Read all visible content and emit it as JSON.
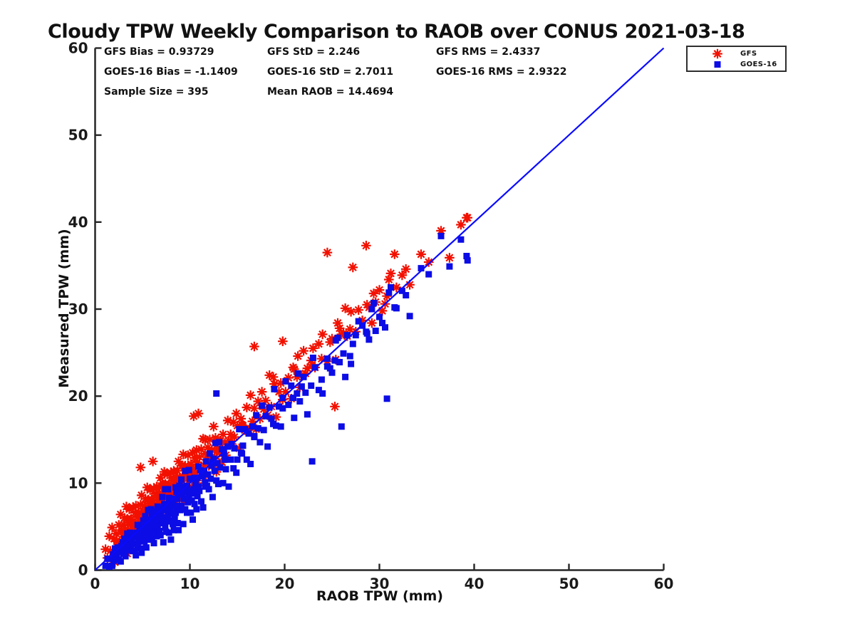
{
  "title": "Cloudy TPW Weekly Comparison to RAOB over CONUS 2021-03-18",
  "stats": [
    [
      "GFS Bias = 0.93729",
      "GFS StD = 2.246",
      "GFS RMS = 2.4337"
    ],
    [
      "GOES-16 Bias = -1.1409",
      "GOES-16 StD = 2.7011",
      "GOES-16 RMS = 2.9322"
    ],
    [
      "Sample Size = 395",
      "Mean RAOB = 14.4694"
    ]
  ],
  "axes": {
    "x_label": "RAOB TPW (mm)",
    "y_label": "Measured TPW (mm)",
    "axis_color": "#262626",
    "text_color": "#1a1a1a"
  },
  "chart_data": {
    "type": "scatter",
    "title": "Cloudy TPW Weekly Comparison to RAOB over CONUS 2021-03-18",
    "xlabel": "RAOB TPW (mm)",
    "ylabel": "Measured TPW (mm)",
    "xlim": [
      0,
      60
    ],
    "ylim": [
      0,
      60
    ],
    "x_ticks": [
      0,
      10,
      20,
      30,
      40,
      50,
      60
    ],
    "y_ticks": [
      0,
      10,
      20,
      30,
      40,
      50,
      60
    ],
    "grid": false,
    "legend_position": "top-right",
    "identity_line": {
      "from": [
        0,
        0
      ],
      "to": [
        60,
        60
      ],
      "color": "#0a0aff"
    },
    "stats": {
      "gfs_bias": 0.93729,
      "gfs_std": 2.246,
      "gfs_rms": 2.4337,
      "goes16_bias": -1.1409,
      "goes16_std": 2.7011,
      "goes16_rms": 2.9322,
      "sample_size": 395,
      "mean_raob": 14.4694
    },
    "x": [
      1.1,
      1.3,
      1.5,
      1.6,
      1.8,
      1.9,
      2.0,
      2.1,
      2.2,
      2.3,
      2.4,
      2.5,
      2.6,
      2.7,
      2.8,
      2.8,
      2.9,
      2.9,
      3.0,
      3.0,
      3.1,
      3.1,
      3.2,
      3.2,
      3.3,
      3.3,
      3.4,
      3.4,
      3.5,
      3.5,
      3.6,
      3.6,
      3.7,
      3.7,
      3.8,
      3.8,
      3.9,
      3.9,
      4.0,
      4.0,
      4.1,
      4.1,
      4.2,
      4.3,
      4.3,
      4.4,
      4.5,
      4.5,
      4.6,
      4.7,
      4.7,
      4.8,
      4.9,
      4.9,
      5.0,
      5.0,
      5.1,
      5.1,
      5.2,
      5.2,
      5.3,
      5.3,
      5.4,
      5.4,
      5.5,
      5.5,
      5.6,
      5.6,
      5.7,
      5.7,
      5.8,
      5.8,
      5.9,
      5.9,
      6.0,
      6.0,
      6.1,
      6.1,
      6.2,
      6.2,
      6.3,
      6.3,
      6.4,
      6.4,
      6.5,
      6.5,
      6.6,
      6.6,
      6.7,
      6.7,
      6.8,
      6.8,
      6.9,
      6.9,
      7.0,
      7.0,
      6.2,
      5.8,
      6.4,
      6.1,
      7.1,
      7.1,
      7.2,
      7.2,
      7.3,
      7.3,
      7.4,
      7.4,
      7.5,
      7.5,
      7.6,
      7.6,
      7.7,
      7.7,
      7.8,
      7.8,
      7.9,
      7.9,
      8.0,
      8.0,
      8.1,
      8.1,
      8.2,
      8.2,
      8.3,
      8.4,
      8.4,
      8.5,
      8.5,
      8.6,
      8.6,
      8.7,
      8.7,
      8.8,
      8.8,
      8.9,
      8.9,
      9.0,
      8.3,
      8.2,
      9.1,
      9.1,
      9.2,
      9.3,
      9.3,
      9.4,
      9.5,
      9.5,
      9.6,
      9.7,
      9.7,
      9.8,
      9.9,
      9.9,
      10.0,
      10.1,
      10.1,
      10.2,
      10.3,
      10.3,
      10.4,
      10.5,
      10.5,
      10.6,
      10.7,
      10.8,
      10.8,
      10.9,
      11.0,
      10.2,
      11.1,
      11.2,
      11.3,
      11.4,
      11.5,
      11.6,
      11.7,
      11.8,
      11.9,
      12.0,
      12.1,
      12.2,
      12.3,
      12.4,
      12.5,
      12.6,
      12.7,
      12.8,
      12.9,
      13.0,
      12.4,
      11.6,
      13.1,
      13.2,
      13.4,
      13.5,
      13.7,
      13.8,
      14.0,
      14.1,
      14.3,
      14.4,
      14.6,
      14.7,
      14.9,
      13.6,
      15.0,
      15.2,
      15.4,
      15.6,
      15.8,
      16.0,
      16.2,
      16.4,
      16.6,
      16.8,
      17.0,
      15.5,
      17.2,
      17.4,
      17.6,
      17.8,
      18.0,
      18.2,
      18.4,
      18.6,
      18.9,
      19.1,
      19.4,
      19.6,
      19.8,
      18.8,
      20.1,
      20.4,
      20.7,
      21.0,
      21.3,
      21.6,
      22.0,
      22.4,
      22.8,
      23.2,
      23.6,
      21.8,
      24.0,
      24.5,
      25.0,
      25.4,
      25.8,
      26.2,
      26.6,
      27.0,
      27.5,
      26.4,
      28.2,
      28.7,
      29.2,
      29.6,
      30.0,
      30.6,
      31.2,
      31.8,
      32.4,
      33.2,
      34.4,
      35.2,
      36.5,
      37.4,
      38.6,
      39.2,
      24.5,
      27.2,
      28.6,
      31.6,
      25.3,
      10.9,
      10.4,
      16.8,
      19.8,
      4.8,
      6.1,
      12.8,
      30.8,
      26.0,
      22.9,
      39.3,
      20.9,
      21.4,
      22.2,
      23.0,
      23.9,
      24.8,
      25.6,
      26.9,
      27.8,
      28.9,
      29.4,
      30.3,
      31.0,
      32.8
    ],
    "series": [
      {
        "name": "GFS",
        "marker": "asterisk",
        "color": "#f21000",
        "y": [
          2.4,
          1.4,
          3.9,
          2.2,
          4.9,
          1.4,
          3.6,
          0.9,
          4.2,
          3.3,
          2.7,
          5.2,
          2.5,
          6.4,
          3.3,
          4.6,
          2.1,
          4.1,
          5.2,
          3.0,
          6.0,
          3.8,
          4.7,
          2.8,
          7.3,
          3.5,
          5.9,
          1.9,
          4.6,
          5.4,
          3.4,
          7.0,
          4.1,
          5.4,
          2.8,
          5.9,
          4.8,
          3.3,
          7.2,
          4.8,
          5.4,
          4.2,
          6.6,
          4.9,
          7.4,
          3.9,
          6.1,
          3.3,
          6.6,
          5.7,
          5.0,
          7.5,
          4.8,
          8.6,
          5.5,
          6.8,
          4.3,
          6.3,
          7.4,
          5.2,
          8.2,
          6.0,
          6.9,
          5.0,
          9.5,
          5.7,
          8.1,
          4.1,
          6.8,
          7.6,
          5.6,
          9.2,
          6.3,
          7.6,
          5.0,
          8.1,
          7.0,
          5.5,
          9.4,
          7.0,
          7.6,
          6.4,
          8.8,
          7.0,
          9.6,
          6.0,
          8.2,
          5.4,
          8.7,
          7.7,
          7.1,
          9.5,
          6.8,
          10.6,
          7.5,
          8.8,
          5.4,
          7.0,
          8.6,
          6.1,
          10.0,
          7.8,
          8.7,
          6.8,
          11.3,
          7.5,
          9.9,
          5.9,
          8.6,
          9.4,
          7.4,
          11.0,
          8.1,
          9.4,
          6.8,
          9.9,
          8.8,
          7.3,
          11.2,
          8.8,
          9.4,
          8.2,
          10.6,
          8.8,
          11.4,
          7.9,
          10.0,
          7.3,
          10.5,
          9.6,
          8.9,
          11.4,
          8.6,
          12.5,
          9.3,
          10.7,
          8.1,
          10.2,
          10.5,
          8.2,
          12.0,
          9.8,
          10.7,
          8.9,
          13.3,
          9.6,
          12.0,
          8.0,
          10.7,
          11.6,
          9.5,
          13.2,
          10.3,
          11.6,
          9.0,
          12.2,
          11.0,
          9.6,
          13.5,
          11.1,
          11.7,
          10.6,
          12.9,
          11.2,
          13.8,
          10.3,
          12.4,
          9.7,
          13.0,
          11.2,
          11.4,
          13.9,
          11.2,
          15.1,
          12.0,
          13.4,
          10.9,
          13.0,
          14.1,
          12.0,
          15.0,
          12.9,
          13.8,
          12.0,
          16.5,
          12.8,
          15.2,
          11.3,
          14.0,
          14.9,
          12.2,
          15.0,
          13.5,
          14.9,
          12.4,
          15.6,
          14.6,
          13.2,
          17.2,
          14.9,
          15.6,
          14.5,
          17.0,
          15.3,
          18.0,
          13.1,
          16.6,
          14.0,
          17.4,
          16.6,
          16.1,
          18.7,
          16.1,
          20.1,
          17.1,
          18.6,
          16.2,
          16.7,
          19.4,
          17.4,
          20.5,
          18.5,
          19.5,
          17.8,
          22.4,
          18.8,
          21.4,
          17.6,
          20.5,
          21.5,
          19.6,
          22.2,
          20.5,
          22.1,
          19.7,
          23.1,
          22.2,
          21.0,
          25.2,
          23.2,
          24.1,
          23.3,
          26.0,
          22.4,
          27.1,
          24.0,
          26.6,
          24.2,
          27.8,
          27.2,
          26.9,
          29.7,
          27.4,
          30.1,
          28.7,
          30.5,
          28.4,
          30.8,
          32.2,
          30.6,
          34.1,
          32.5,
          33.9,
          32.8,
          36.3,
          35.4,
          39.0,
          35.9,
          39.7,
          40.5,
          36.5,
          34.8,
          37.3,
          36.3,
          18.8,
          18.0,
          17.7,
          25.7,
          26.3,
          11.8,
          12.5,
          13.6,
          31.5,
          27.1,
          23.6,
          40.5,
          23.3,
          24.6,
          22.6,
          25.5,
          24.3,
          26.2,
          28.4,
          27.7,
          29.9,
          30.2,
          31.8,
          29.8,
          33.4,
          34.6
        ]
      },
      {
        "name": "GOES-16",
        "marker": "square",
        "color": "#0c0ce6",
        "y": [
          0.5,
          1.3,
          0.4,
          1.3,
          0.5,
          1.8,
          1.1,
          2.5,
          1.4,
          1.8,
          2.6,
          1.2,
          2.4,
          1.0,
          2.8,
          2.2,
          3.2,
          2.1,
          2.6,
          1.9,
          3.6,
          2.4,
          3.1,
          1.6,
          3.4,
          2.8,
          4.2,
          2.4,
          3.3,
          2.3,
          3.6,
          2.8,
          4.3,
          3.1,
          4.0,
          2.4,
          3.5,
          3.0,
          4.1,
          2.2,
          3.0,
          4.2,
          2.2,
          3.8,
          1.7,
          4.3,
          2.9,
          5.2,
          3.3,
          3.8,
          5.0,
          2.5,
          4.6,
          2.0,
          4.9,
          4.0,
          5.7,
          3.6,
          4.6,
          3.3,
          6.2,
          4.1,
          5.2,
          2.6,
          5.7,
          4.7,
          6.9,
          3.9,
          5.3,
          3.5,
          5.8,
          4.4,
          7.0,
          4.9,
          6.4,
          3.6,
          5.4,
          4.6,
          6.3,
          3.1,
          5.2,
          6.4,
          4.4,
          5.9,
          3.9,
          6.4,
          5.0,
          7.3,
          5.4,
          5.8,
          7.1,
          4.5,
          6.6,
          4.0,
          6.9,
          6.0,
          6.8,
          4.3,
          5.8,
          4.2,
          8.4,
          5.4,
          6.9,
          3.2,
          7.6,
          6.1,
          9.3,
          4.9,
          6.9,
          4.4,
          7.6,
          5.6,
          9.3,
          6.3,
          8.3,
          4.3,
          6.9,
          5.7,
          8.2,
          3.5,
          6.5,
          8.2,
          5.3,
          7.5,
          4.6,
          8.2,
          6.1,
          9.5,
          6.6,
          7.3,
          9.0,
          5.4,
          8.2,
          4.6,
          8.7,
          7.4,
          9.7,
          6.9,
          7.4,
          5.5,
          10.4,
          7.4,
          8.9,
          5.3,
          9.6,
          8.2,
          11.4,
          7.0,
          9.0,
          6.6,
          9.7,
          7.8,
          11.5,
          8.5,
          10.5,
          6.6,
          9.1,
          8.0,
          10.5,
          5.8,
          8.8,
          10.6,
          7.6,
          9.9,
          7.0,
          10.6,
          8.5,
          11.9,
          9.1,
          8.9,
          11.5,
          7.9,
          10.8,
          7.2,
          11.4,
          10.1,
          12.5,
          9.7,
          11.0,
          9.3,
          13.4,
          10.5,
          12.0,
          8.4,
          12.8,
          11.4,
          14.6,
          10.3,
          12.3,
          9.9,
          12.4,
          9.6,
          14.7,
          11.8,
          13.9,
          10.0,
          12.7,
          11.6,
          14.2,
          9.6,
          12.7,
          14.5,
          11.7,
          14.0,
          11.2,
          13.4,
          12.7,
          16.2,
          13.5,
          14.3,
          16.2,
          12.7,
          15.7,
          12.2,
          16.5,
          15.3,
          17.8,
          13.4,
          16.3,
          14.7,
          18.9,
          16.1,
          17.7,
          14.2,
          18.7,
          17.4,
          20.8,
          16.6,
          18.8,
          16.5,
          19.8,
          16.8,
          21.7,
          19.0,
          21.2,
          17.5,
          20.3,
          19.4,
          22.2,
          17.9,
          21.2,
          23.3,
          20.7,
          21.1,
          20.3,
          24.3,
          22.7,
          26.4,
          23.9,
          24.9,
          27.0,
          23.7,
          27.0,
          22.2,
          28.1,
          27.2,
          30.0,
          27.5,
          29.1,
          27.9,
          32.5,
          30.1,
          32.1,
          29.2,
          34.7,
          34.0,
          38.4,
          34.9,
          38.0,
          36.1,
          23.4,
          26.0,
          27.4,
          30.2,
          24.1,
          9.6,
          9.3,
          15.4,
          18.6,
          3.9,
          5.2,
          20.3,
          19.7,
          16.5,
          12.5,
          35.6,
          19.8,
          22.6,
          20.4,
          24.4,
          21.9,
          23.2,
          26.7,
          24.6,
          28.6,
          26.5,
          30.7,
          28.4,
          31.9,
          31.6
        ]
      }
    ]
  }
}
